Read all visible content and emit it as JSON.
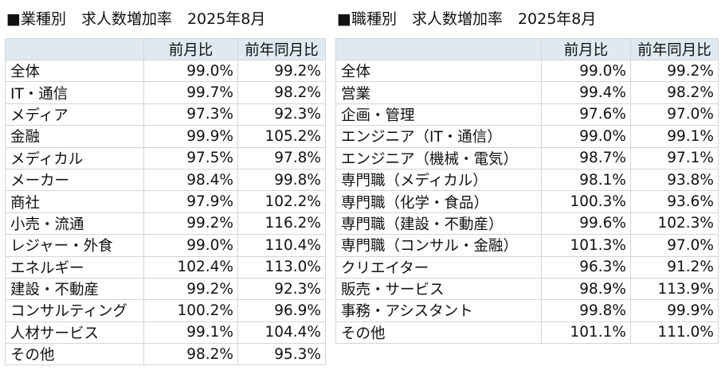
{
  "industry": {
    "title": "■業種別　求人数増加率　2025年8月",
    "headers": [
      "",
      "前月比",
      "前年同月比"
    ],
    "rows": [
      [
        "全体",
        "99.0%",
        "99.2%"
      ],
      [
        "IT・通信",
        "99.7%",
        "98.2%"
      ],
      [
        "メディア",
        "97.3%",
        "92.3%"
      ],
      [
        "金融",
        "99.9%",
        "105.2%"
      ],
      [
        "メディカル",
        "97.5%",
        "97.8%"
      ],
      [
        "メーカー",
        "98.4%",
        "99.8%"
      ],
      [
        "商社",
        "97.9%",
        "102.2%"
      ],
      [
        "小売・流通",
        "99.2%",
        "116.2%"
      ],
      [
        "レジャー・外食",
        "99.0%",
        "110.4%"
      ],
      [
        "エネルギー",
        "102.4%",
        "113.0%"
      ],
      [
        "建設・不動産",
        "99.2%",
        "92.3%"
      ],
      [
        "コンサルティング",
        "100.2%",
        "96.9%"
      ],
      [
        "人材サービス",
        "99.1%",
        "104.4%"
      ],
      [
        "その他",
        "98.2%",
        "95.3%"
      ]
    ]
  },
  "job": {
    "title": "■職種別　求人数増加率　2025年8月",
    "headers": [
      "",
      "前月比",
      "前年同月比"
    ],
    "rows": [
      [
        "全体",
        "99.0%",
        "99.2%"
      ],
      [
        "営業",
        "99.4%",
        "98.2%"
      ],
      [
        "企画・管理",
        "97.6%",
        "97.0%"
      ],
      [
        "エンジニア（IT・通信）",
        "99.0%",
        "99.1%"
      ],
      [
        "エンジニア（機械・電気）",
        "98.7%",
        "97.1%"
      ],
      [
        "専門職（メディカル）",
        "98.1%",
        "93.8%"
      ],
      [
        "専門職（化学・食品）",
        "100.3%",
        "93.6%"
      ],
      [
        "専門職（建設・不動産）",
        "99.6%",
        "102.3%"
      ],
      [
        "専門職（コンサル・金融）",
        "101.3%",
        "97.0%"
      ],
      [
        "クリエイター",
        "96.3%",
        "91.2%"
      ],
      [
        "販売・サービス",
        "98.9%",
        "113.9%"
      ],
      [
        "事務・アシスタント",
        "99.8%",
        "99.9%"
      ],
      [
        "その他",
        "101.1%",
        "111.0%"
      ]
    ]
  }
}
